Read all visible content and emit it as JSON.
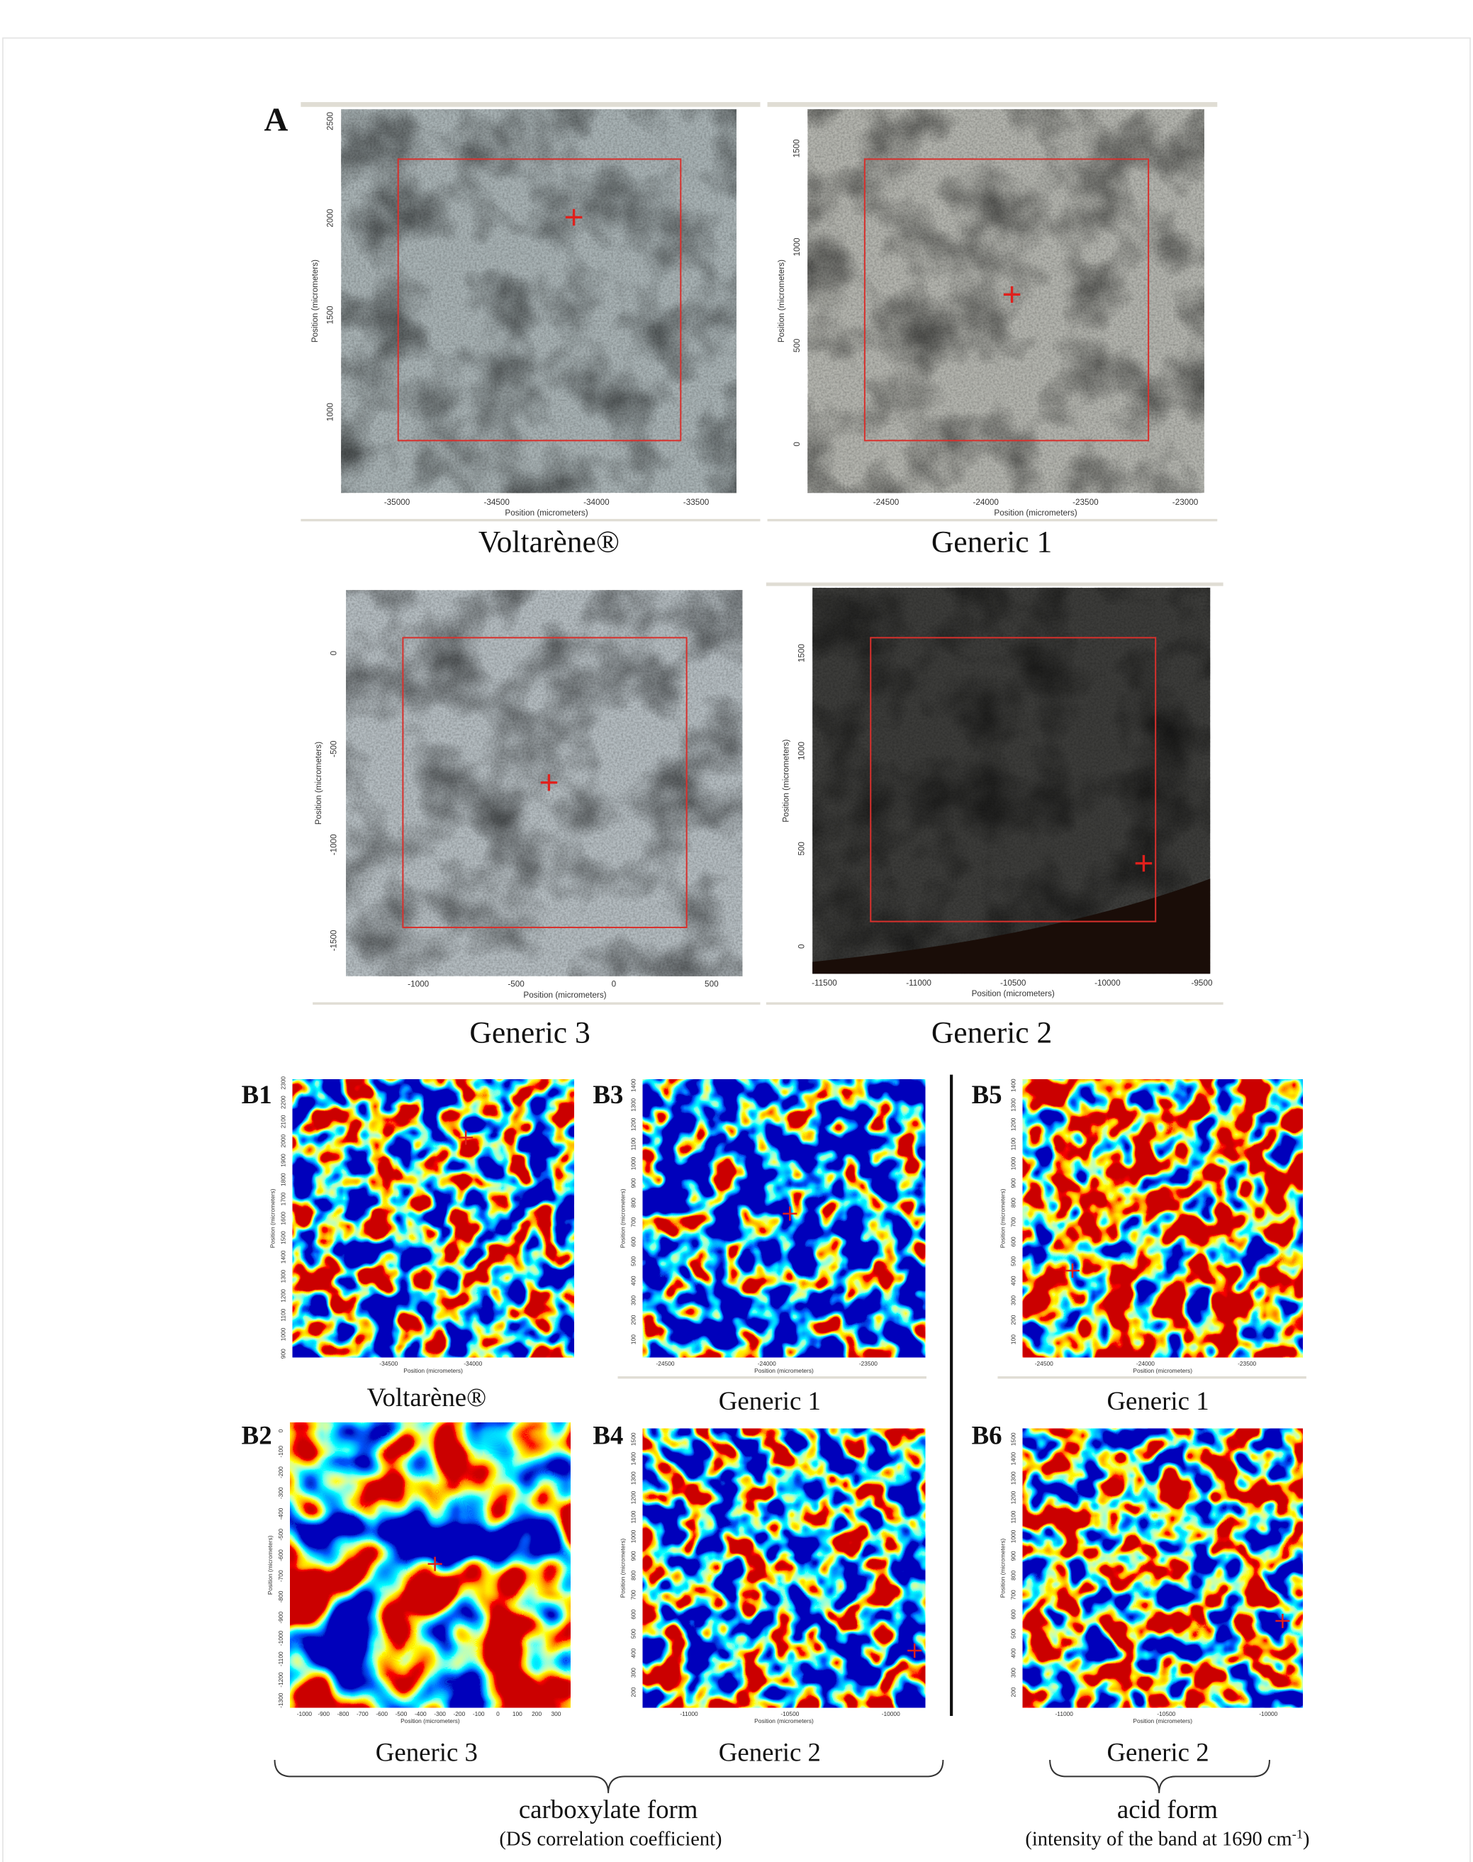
{
  "figure": {
    "panel_a": {
      "label": "A",
      "panels": [
        {
          "caption": "Voltarène®",
          "x_title": "Position (micrometers)",
          "y_title": "Position (micrometers)",
          "x_ticks": [
            -35000,
            -34500,
            -34000,
            -33500
          ],
          "y_ticks": [
            2500,
            2000,
            1500,
            1000
          ]
        },
        {
          "caption": "Generic 1",
          "x_title": "Position (micrometers)",
          "y_title": "Position (micrometers)",
          "x_ticks": [
            -24500,
            -24000,
            -23500,
            -23000
          ],
          "y_ticks": [
            1500,
            1000,
            500,
            0
          ]
        },
        {
          "caption": "Generic 3",
          "x_title": "Position (micrometers)",
          "y_title": "Position (micrometers)",
          "x_ticks": [
            -1000,
            -500,
            0,
            500
          ],
          "y_ticks": [
            0,
            -500,
            -1000,
            -1500
          ]
        },
        {
          "caption": "Generic 2",
          "x_title": "Position (micrometers)",
          "y_title": "Position (micrometers)",
          "x_ticks": [
            -11500,
            -11000,
            -10500,
            -10000,
            -9500
          ],
          "y_ticks": [
            1500,
            1000,
            500,
            0
          ]
        }
      ]
    },
    "panel_b": {
      "panels": [
        {
          "label": "B1",
          "caption": "Voltarène®",
          "x_title": "Position (micrometers)",
          "y_title": "Position (micrometers)",
          "x_ticks": [
            -34500,
            -34000
          ],
          "y_ticks": [
            900,
            1000,
            1100,
            1200,
            1300,
            1400,
            1500,
            1600,
            1700,
            1800,
            1900,
            2000,
            2100,
            2200,
            2300
          ]
        },
        {
          "label": "B3",
          "caption": "Generic 1",
          "x_title": "Position (micrometers)",
          "y_title": "Position (micrometers)",
          "x_ticks": [
            -24500,
            -24000,
            -23500
          ],
          "y_ticks": [
            100,
            200,
            300,
            400,
            500,
            600,
            700,
            800,
            900,
            1000,
            1100,
            1200,
            1300,
            1400
          ]
        },
        {
          "label": "B5",
          "caption": "Generic 1",
          "x_title": "Position (micrometers)",
          "y_title": "Position (micrometers)",
          "x_ticks": [
            -24500,
            -24000,
            -23500
          ],
          "y_ticks": [
            100,
            200,
            300,
            400,
            500,
            600,
            700,
            800,
            900,
            1000,
            1100,
            1200,
            1300,
            1400
          ]
        },
        {
          "label": "B2",
          "caption": "Generic 3",
          "x_title": "Position (micrometers)",
          "y_title": "Position (micrometers)",
          "x_ticks": [
            -1000,
            -900,
            -800,
            -700,
            -600,
            -500,
            -400,
            -300,
            -200,
            -100,
            0,
            100,
            200,
            300
          ],
          "y_ticks": [
            0,
            -100,
            -200,
            -300,
            -400,
            -500,
            -600,
            -700,
            -800,
            -900,
            -1000,
            -1100,
            -1200,
            -1300
          ]
        },
        {
          "label": "B4",
          "caption": "Generic 2",
          "x_title": "Position (micrometers)",
          "y_title": "Position (micrometers)",
          "x_ticks": [
            -11000,
            -10500,
            -10000
          ],
          "y_ticks": [
            200,
            300,
            400,
            500,
            600,
            700,
            800,
            900,
            1000,
            1100,
            1200,
            1300,
            1400,
            1500
          ]
        },
        {
          "label": "B6",
          "caption": "Generic 2",
          "x_title": "Position (micrometers)",
          "y_title": "Position (micrometers)",
          "x_ticks": [
            -11000,
            -10500,
            -10000
          ],
          "y_ticks": [
            200,
            300,
            400,
            500,
            600,
            700,
            800,
            900,
            1000,
            1100,
            1200,
            1300,
            1400,
            1500
          ]
        }
      ]
    },
    "groups": [
      {
        "title": "carboxylate form",
        "subtitle": "(DS correlation coefficient)"
      },
      {
        "title": "acid form",
        "subtitle_main": "(intensity  of the band at 1690 cm",
        "subtitle_sup": "-1",
        "subtitle_end": ")"
      }
    ]
  }
}
